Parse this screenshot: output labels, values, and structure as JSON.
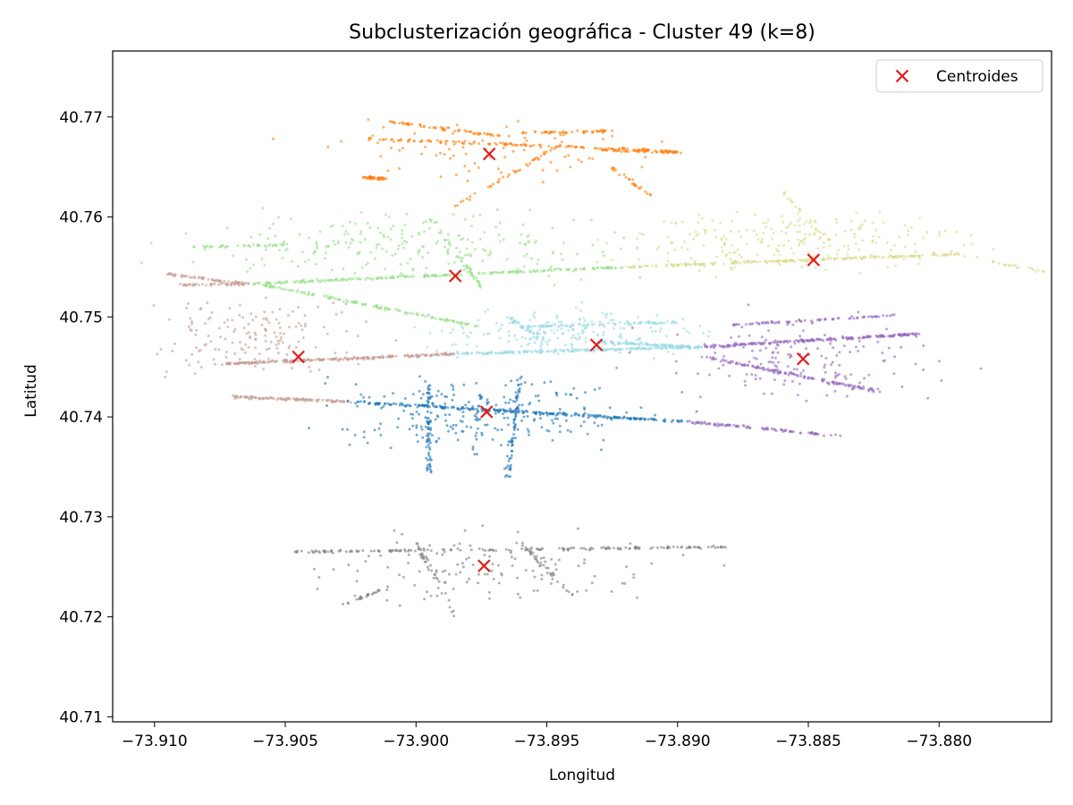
{
  "chart_data": {
    "type": "scatter",
    "title": "Subclusterización geográfica - Cluster 49 (k=8)",
    "xlabel": "Longitud",
    "ylabel": "Latitud",
    "xlim": [
      -73.9116,
      -73.8757
    ],
    "ylim": [
      40.7095,
      40.7766
    ],
    "x_ticks": [
      -73.91,
      -73.905,
      -73.9,
      -73.895,
      -73.89,
      -73.885,
      -73.88
    ],
    "x_tick_labels": [
      "−73.910",
      "−73.905",
      "−73.900",
      "−73.895",
      "−73.890",
      "−73.885",
      "−73.880"
    ],
    "y_ticks": [
      40.71,
      40.72,
      40.73,
      40.74,
      40.75,
      40.76,
      40.77
    ],
    "y_tick_labels": [
      "40.71",
      "40.72",
      "40.73",
      "40.74",
      "40.75",
      "40.76",
      "40.77"
    ],
    "grid": false,
    "legend": {
      "position": "top-right",
      "entries": [
        "Centroides"
      ]
    },
    "centroid_color": "#e41a1c",
    "clusters": [
      {
        "id": 0,
        "color": "#1f77b4",
        "centroid": [
          -73.8973,
          40.7405
        ]
      },
      {
        "id": 1,
        "color": "#ff7f0e",
        "centroid": [
          -73.8972,
          40.7663
        ]
      },
      {
        "id": 2,
        "color": "#98df8a",
        "centroid": [
          -73.8985,
          40.7541
        ]
      },
      {
        "id": 3,
        "color": "#9467bd",
        "centroid": [
          -73.8852,
          40.7458
        ]
      },
      {
        "id": 4,
        "color": "#c49c94",
        "centroid": [
          -73.9045,
          40.746
        ]
      },
      {
        "id": 5,
        "color": "#7f7f7f",
        "centroid": [
          -73.8974,
          40.7251
        ]
      },
      {
        "id": 6,
        "color": "#dbdb8d",
        "centroid": [
          -73.8848,
          40.7557
        ]
      },
      {
        "id": 7,
        "color": "#9edae5",
        "centroid": [
          -73.8931,
          40.7472
        ]
      }
    ],
    "segments": [
      {
        "cluster": 1,
        "from": [
          -73.9018,
          40.7678
        ],
        "to": [
          -73.891,
          40.7667
        ],
        "n": 110
      },
      {
        "cluster": 1,
        "from": [
          -73.901,
          40.7695
        ],
        "to": [
          -73.8965,
          40.768
        ],
        "n": 60
      },
      {
        "cluster": 1,
        "from": [
          -73.896,
          40.7684
        ],
        "to": [
          -73.8925,
          40.7686
        ],
        "n": 50
      },
      {
        "cluster": 1,
        "from": [
          -73.893,
          40.7667
        ],
        "to": [
          -73.89,
          40.7665
        ],
        "n": 70
      },
      {
        "cluster": 1,
        "from": [
          -73.902,
          40.764
        ],
        "to": [
          -73.9012,
          40.7638
        ],
        "n": 45
      },
      {
        "cluster": 1,
        "from": [
          -73.8945,
          40.7672
        ],
        "to": [
          -73.8985,
          40.761
        ],
        "n": 40
      },
      {
        "cluster": 1,
        "from": [
          -73.8925,
          40.765
        ],
        "to": [
          -73.891,
          40.762
        ],
        "n": 25
      },
      {
        "cluster": 2,
        "from": [
          -73.9063,
          40.7533
        ],
        "to": [
          -73.892,
          40.755
        ],
        "n": 220
      },
      {
        "cluster": 2,
        "from": [
          -73.906,
          40.7533
        ],
        "to": [
          -73.8975,
          40.749
        ],
        "n": 130
      },
      {
        "cluster": 2,
        "from": [
          -73.9085,
          40.757
        ],
        "to": [
          -73.905,
          40.7572
        ],
        "n": 40
      },
      {
        "cluster": 2,
        "from": [
          -73.8995,
          40.76
        ],
        "to": [
          -73.8975,
          40.753
        ],
        "n": 40
      },
      {
        "cluster": 6,
        "from": [
          -73.892,
          40.755
        ],
        "to": [
          -73.8792,
          40.7563
        ],
        "n": 220
      },
      {
        "cluster": 6,
        "from": [
          -73.878,
          40.7555
        ],
        "to": [
          -73.876,
          40.7545
        ],
        "n": 20
      },
      {
        "cluster": 6,
        "from": [
          -73.886,
          40.7625
        ],
        "to": [
          -73.884,
          40.757
        ],
        "n": 25
      },
      {
        "cluster": 4,
        "from": [
          -73.9073,
          40.7453
        ],
        "to": [
          -73.8985,
          40.7463
        ],
        "n": 220
      },
      {
        "cluster": 4,
        "from": [
          -73.907,
          40.742
        ],
        "to": [
          -73.9025,
          40.7415
        ],
        "n": 110
      },
      {
        "cluster": 4,
        "from": [
          -73.9095,
          40.7543
        ],
        "to": [
          -73.9065,
          40.7533
        ],
        "n": 60
      },
      {
        "cluster": 4,
        "from": [
          -73.909,
          40.7532
        ],
        "to": [
          -73.9063,
          40.7533
        ],
        "n": 40
      },
      {
        "cluster": 7,
        "from": [
          -73.8985,
          40.7463
        ],
        "to": [
          -73.889,
          40.747
        ],
        "n": 220
      },
      {
        "cluster": 7,
        "from": [
          -73.896,
          40.749
        ],
        "to": [
          -73.89,
          40.7495
        ],
        "n": 80
      },
      {
        "cluster": 7,
        "from": [
          -73.893,
          40.7475
        ],
        "to": [
          -73.8895,
          40.747
        ],
        "n": 90
      },
      {
        "cluster": 7,
        "from": [
          -73.895,
          40.7475
        ],
        "to": [
          -73.8965,
          40.75
        ],
        "n": 30
      },
      {
        "cluster": 3,
        "from": [
          -73.889,
          40.747
        ],
        "to": [
          -73.8808,
          40.7483
        ],
        "n": 200
      },
      {
        "cluster": 3,
        "from": [
          -73.889,
          40.746
        ],
        "to": [
          -73.8822,
          40.7425
        ],
        "n": 120
      },
      {
        "cluster": 3,
        "from": [
          -73.888,
          40.7492
        ],
        "to": [
          -73.8815,
          40.7502
        ],
        "n": 70
      },
      {
        "cluster": 3,
        "from": [
          -73.8895,
          40.7395
        ],
        "to": [
          -73.8838,
          40.7381
        ],
        "n": 90
      },
      {
        "cluster": 0,
        "from": [
          -73.9025,
          40.7415
        ],
        "to": [
          -73.8895,
          40.7395
        ],
        "n": 230
      },
      {
        "cluster": 0,
        "from": [
          -73.8995,
          40.7435
        ],
        "to": [
          -73.8995,
          40.7345
        ],
        "n": 70
      },
      {
        "cluster": 0,
        "from": [
          -73.896,
          40.744
        ],
        "to": [
          -73.8965,
          40.734
        ],
        "n": 70
      },
      {
        "cluster": 0,
        "from": [
          -73.8975,
          40.743
        ],
        "to": [
          -73.8978,
          40.736
        ],
        "n": 20
      },
      {
        "cluster": 5,
        "from": [
          -73.905,
          40.7265
        ],
        "to": [
          -73.888,
          40.727
        ],
        "n": 160
      },
      {
        "cluster": 5,
        "from": [
          -73.9,
          40.7275
        ],
        "to": [
          -73.8985,
          40.72
        ],
        "n": 35
      },
      {
        "cluster": 5,
        "from": [
          -73.896,
          40.7275
        ],
        "to": [
          -73.894,
          40.722
        ],
        "n": 35
      },
      {
        "cluster": 5,
        "from": [
          -73.903,
          40.721
        ],
        "to": [
          -73.901,
          40.723
        ],
        "n": 25
      }
    ],
    "scatter": [
      {
        "cluster": 1,
        "center": [
          -73.8975,
          40.7665
        ],
        "spread": [
          0.006,
          0.0028
        ],
        "n": 80
      },
      {
        "cluster": 2,
        "center": [
          -73.9,
          40.757
        ],
        "spread": [
          0.008,
          0.003
        ],
        "n": 240
      },
      {
        "cluster": 6,
        "center": [
          -73.8855,
          40.7575
        ],
        "spread": [
          0.006,
          0.003
        ],
        "n": 220
      },
      {
        "cluster": 4,
        "center": [
          -73.906,
          40.748
        ],
        "spread": [
          0.004,
          0.004
        ],
        "n": 160
      },
      {
        "cluster": 7,
        "center": [
          -73.894,
          40.7485
        ],
        "spread": [
          0.005,
          0.002
        ],
        "n": 200
      },
      {
        "cluster": 3,
        "center": [
          -73.8855,
          40.7455
        ],
        "spread": [
          0.005,
          0.004
        ],
        "n": 160
      },
      {
        "cluster": 0,
        "center": [
          -73.8975,
          40.7405
        ],
        "spread": [
          0.006,
          0.0035
        ],
        "n": 220
      },
      {
        "cluster": 5,
        "center": [
          -73.8975,
          40.725
        ],
        "spread": [
          0.007,
          0.0035
        ],
        "n": 130
      }
    ]
  }
}
